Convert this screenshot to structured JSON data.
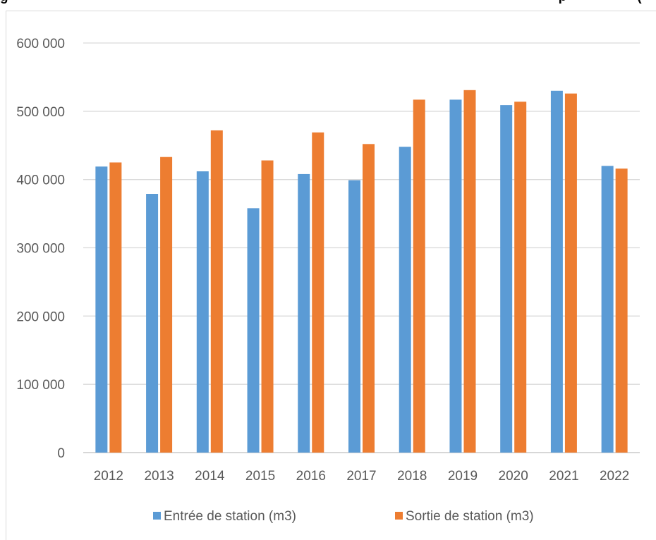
{
  "page": {
    "title_fragment": "g",
    "title_tail": "p",
    "title_end": "("
  },
  "chart_data": {
    "type": "bar",
    "title": "",
    "xlabel": "",
    "ylabel": "",
    "categories": [
      "2012",
      "2013",
      "2014",
      "2015",
      "2016",
      "2017",
      "2018",
      "2019",
      "2020",
      "2021",
      "2022"
    ],
    "series": [
      {
        "name": "Entrée de station (m3)",
        "color": "#5b9bd5",
        "values": [
          419000,
          379000,
          412000,
          358000,
          408000,
          399000,
          448000,
          517000,
          509000,
          530000,
          420000
        ]
      },
      {
        "name": "Sortie de station (m3)",
        "color": "#ed7d31",
        "values": [
          425000,
          433000,
          472000,
          428000,
          469000,
          452000,
          517000,
          531000,
          514000,
          526000,
          416000
        ]
      }
    ],
    "ylim": [
      0,
      600000
    ],
    "yticks": [
      0,
      100000,
      200000,
      300000,
      400000,
      500000,
      600000
    ],
    "ytick_labels": [
      "0",
      "100 000",
      "200 000",
      "300 000",
      "400 000",
      "500 000",
      "600 000"
    ],
    "grid": true,
    "legend_position": "bottom"
  }
}
